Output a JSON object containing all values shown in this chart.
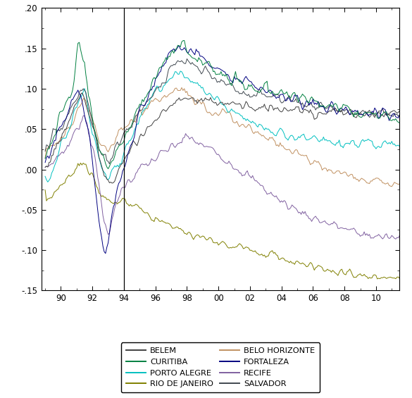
{
  "title": "",
  "xlim": [
    1988.75,
    2011.5
  ],
  "ylim": [
    -0.15,
    0.2
  ],
  "yticks": [
    -0.15,
    -0.1,
    -0.05,
    0.0,
    0.05,
    0.1,
    0.15,
    0.2
  ],
  "ytick_labels": [
    "-.15",
    "-.10",
    "-.05",
    ".00",
    ".05",
    ".10",
    ".15",
    ".20"
  ],
  "xticks": [
    1990,
    1992,
    1994,
    1996,
    1998,
    2000,
    2002,
    2004,
    2006,
    2008,
    2010
  ],
  "xtick_labels": [
    "90",
    "92",
    "94",
    "96",
    "98",
    "00",
    "02",
    "04",
    "06",
    "08",
    "10"
  ],
  "vline_x": 1994.0,
  "colors": {
    "BELEM": "#404040",
    "CURITIBA": "#008040",
    "PORTO_ALEGRE": "#00c0c0",
    "RIO_DE_JANEIRO": "#808000",
    "BELO_HORIZONTE": "#c09060",
    "FORTALEZA": "#000080",
    "RECIFE": "#8060a0",
    "SALVADOR": "#404850"
  },
  "legend_labels": [
    "BELEM",
    "CURITIBA",
    "PORTO ALEGRE",
    "RIO DE JANEIRO",
    "BELO HORIZONTE",
    "FORTALEZA",
    "RECIFE",
    "SALVADOR"
  ],
  "legend_colors": [
    "#404040",
    "#008040",
    "#00c0c0",
    "#808000",
    "#c09060",
    "#000080",
    "#8060a0",
    "#404850"
  ],
  "background_color": "#ffffff",
  "line_width": 0.7,
  "seed": 42
}
